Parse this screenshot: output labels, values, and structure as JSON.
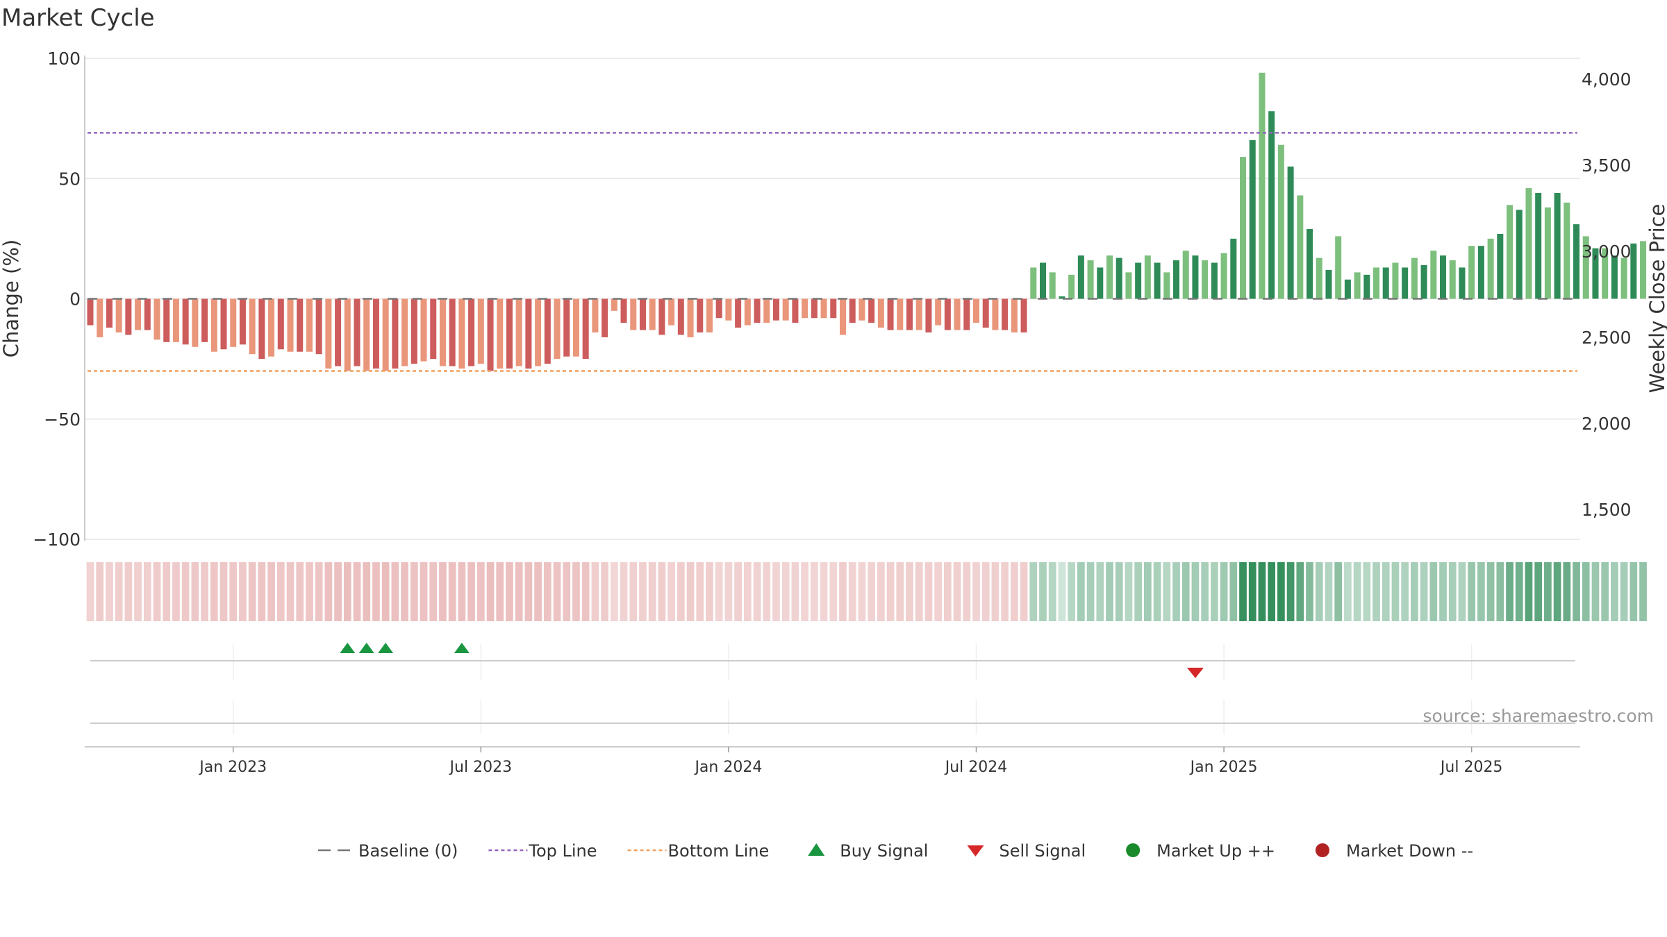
{
  "chart_data": {
    "type": "bar",
    "title": "Market Cycle",
    "ylabel_left": "Change (%)",
    "ylabel_right": "Weekly Close Price",
    "ylim": [
      -100,
      100
    ],
    "y_ticks": [
      100,
      50,
      0,
      -50,
      -100
    ],
    "y_tick_labels": [
      "100",
      "50",
      "0",
      "−50",
      "−100"
    ],
    "right_y_ticks": [
      "4,000",
      "3,500",
      "3,000",
      "2,500",
      "2,000",
      "1,500"
    ],
    "x_tick_labels": [
      "Jan 2023",
      "Jul 2023",
      "Jan 2024",
      "Jul 2024",
      "Jan 2025",
      "Jul 2025"
    ],
    "x_tick_weeks": [
      15,
      41,
      67,
      93,
      119,
      145
    ],
    "top_line": 69,
    "bottom_line": -30,
    "grid": true,
    "legend_position": "bottom",
    "values": [
      -11,
      -16,
      -12,
      -14,
      -15,
      -13,
      -13,
      -17,
      -18,
      -18,
      -19,
      -20,
      -18,
      -22,
      -21,
      -20,
      -19,
      -23,
      -25,
      -24,
      -21,
      -22,
      -22,
      -22,
      -23,
      -29,
      -28,
      -30,
      -28,
      -30,
      -29,
      -30,
      -29,
      -28,
      -27,
      -26,
      -25,
      -28,
      -28,
      -29,
      -28,
      -27,
      -30,
      -29,
      -29,
      -28,
      -29,
      -28,
      -27,
      -25,
      -24,
      -24,
      -25,
      -14,
      -16,
      -5,
      -10,
      -13,
      -13,
      -13,
      -15,
      -11,
      -15,
      -16,
      -14,
      -14,
      -8,
      -9,
      -12,
      -11,
      -10,
      -10,
      -9,
      -9,
      -10,
      -8,
      -8,
      -8,
      -8,
      -15,
      -10,
      -9,
      -10,
      -12,
      -13,
      -13,
      -13,
      -13,
      -14,
      -11,
      -13,
      -13,
      -13,
      -10,
      -12,
      -13,
      -13,
      -14,
      -14,
      13,
      15,
      11,
      1,
      10,
      18,
      16,
      13,
      18,
      17,
      11,
      15,
      18,
      15,
      11,
      16,
      20,
      18,
      16,
      15,
      19,
      25,
      59,
      66,
      94,
      78,
      64,
      55,
      43,
      29,
      17,
      12,
      26,
      8,
      11,
      10,
      13,
      13,
      15,
      13,
      17,
      14,
      20,
      18,
      16,
      13,
      22,
      22,
      25,
      27,
      39,
      37,
      46,
      44,
      38,
      44,
      40,
      31,
      26,
      21,
      21,
      18,
      17,
      23,
      24
    ],
    "buy_signal_weeks": [
      27,
      29,
      31,
      39
    ],
    "sell_signal_weeks": [
      116
    ],
    "source_note": "source: sharemaestro.com",
    "legend": [
      {
        "label": "Baseline (0)",
        "marker": "dash-line",
        "color": "#777777"
      },
      {
        "label": "Top Line",
        "marker": "dotted-line",
        "color": "#9467bd"
      },
      {
        "label": "Bottom Line",
        "marker": "dotted-line",
        "color": "#f0a060"
      },
      {
        "label": "Buy Signal",
        "marker": "triangle-up",
        "color": "#1a9641"
      },
      {
        "label": "Sell Signal",
        "marker": "triangle-down",
        "color": "#d62728"
      },
      {
        "label": "Market Up ++",
        "marker": "circle",
        "color": "#1a8a2a"
      },
      {
        "label": "Market Down --",
        "marker": "circle",
        "color": "#b22222"
      }
    ],
    "colors": {
      "neg_dark": "#cd5c5c",
      "neg_light": "#e9967a",
      "pos_dark": "#2e8b57",
      "pos_light": "#7dbf7d",
      "baseline": "#777777",
      "top_line": "#9467bd",
      "bottom_line": "#f0a060"
    }
  }
}
